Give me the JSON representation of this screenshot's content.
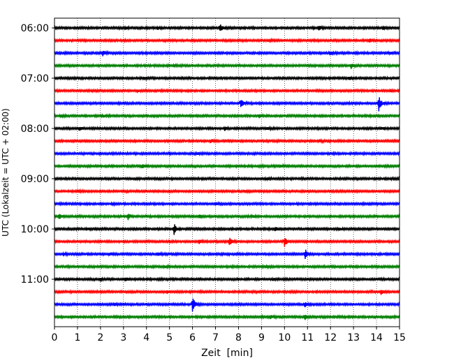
{
  "chart_data": {
    "type": "line",
    "title": "",
    "xlabel": "Zeit  [min]",
    "ylabel": "UTC (Lokalzeit = UTC + 02:00)",
    "xlim": [
      0,
      15
    ],
    "x_ticks": [
      "0",
      "1",
      "2",
      "3",
      "4",
      "5",
      "6",
      "7",
      "8",
      "9",
      "10",
      "11",
      "12",
      "13",
      "14",
      "15"
    ],
    "y_tick_labels": [
      "06:00",
      "07:00",
      "08:00",
      "09:00",
      "10:00",
      "11:00"
    ],
    "grid": "vertical dotted",
    "colors": {
      "black": "#000000",
      "red": "#ff0000",
      "blue": "#0000ff",
      "green": "#008000"
    },
    "series": [
      {
        "start": "06:00",
        "color": "black",
        "events": [
          [
            4.5,
            0.4
          ],
          [
            7.2,
            1.0
          ],
          [
            11.5,
            0.6
          ],
          [
            3.1,
            0.3
          ],
          [
            14.3,
            0.3
          ]
        ]
      },
      {
        "start": "06:15",
        "color": "red",
        "events": [
          [
            13.7,
            0.4
          ],
          [
            9.3,
            0.2
          ]
        ]
      },
      {
        "start": "06:30",
        "color": "blue",
        "events": [
          [
            2.1,
            0.6
          ],
          [
            12.0,
            0.5
          ],
          [
            14.6,
            0.3
          ]
        ]
      },
      {
        "start": "06:45",
        "color": "green",
        "events": [
          [
            12.9,
            0.7
          ],
          [
            5.2,
            0.3
          ]
        ]
      },
      {
        "start": "07:00",
        "color": "black",
        "events": [
          [
            3.9,
            0.3
          ],
          [
            12.8,
            0.3
          ]
        ]
      },
      {
        "start": "07:15",
        "color": "red",
        "events": [
          [
            3.6,
            0.4
          ],
          [
            14.6,
            0.3
          ]
        ]
      },
      {
        "start": "07:30",
        "color": "blue",
        "events": [
          [
            8.1,
            1.5
          ],
          [
            14.1,
            2.2
          ]
        ]
      },
      {
        "start": "07:45",
        "color": "green",
        "events": [
          [
            2.1,
            0.4
          ],
          [
            0.3,
            0.3
          ],
          [
            8.9,
            0.4
          ]
        ]
      },
      {
        "start": "08:00",
        "color": "black",
        "events": [
          [
            1.1,
            0.4
          ],
          [
            7.4,
            0.4
          ],
          [
            9.2,
            0.3
          ],
          [
            14.2,
            0.3
          ]
        ]
      },
      {
        "start": "08:15",
        "color": "red",
        "events": [
          [
            6.8,
            0.5
          ],
          [
            11.5,
            0.3
          ]
        ]
      },
      {
        "start": "08:30",
        "color": "blue",
        "events": [
          [
            6.2,
            0.3
          ]
        ]
      },
      {
        "start": "08:45",
        "color": "green",
        "events": [
          [
            3.8,
            0.6
          ],
          [
            9.8,
            0.3
          ]
        ]
      },
      {
        "start": "09:00",
        "color": "black",
        "events": [
          [
            9.2,
            0.3
          ],
          [
            15.0,
            0.3
          ]
        ]
      },
      {
        "start": "09:15",
        "color": "red",
        "events": [
          [
            1.0,
            0.3
          ],
          [
            8.3,
            0.3
          ]
        ]
      },
      {
        "start": "09:30",
        "color": "blue",
        "events": [
          [
            2.5,
            0.4
          ],
          [
            7.0,
            0.3
          ]
        ]
      },
      {
        "start": "09:45",
        "color": "green",
        "events": [
          [
            0.2,
            0.6
          ],
          [
            3.2,
            1.0
          ],
          [
            6.3,
            0.4
          ],
          [
            8.6,
            0.3
          ]
        ]
      },
      {
        "start": "10:00",
        "color": "black",
        "events": [
          [
            5.2,
            1.6
          ],
          [
            9.6,
            0.6
          ],
          [
            1.4,
            0.3
          ],
          [
            12.4,
            0.3
          ]
        ]
      },
      {
        "start": "10:15",
        "color": "red",
        "events": [
          [
            6.3,
            0.5
          ],
          [
            7.6,
            1.3
          ],
          [
            10.0,
            1.4
          ]
        ]
      },
      {
        "start": "10:30",
        "color": "blue",
        "events": [
          [
            4.5,
            0.5
          ],
          [
            10.9,
            1.3
          ],
          [
            2.4,
            0.4
          ],
          [
            0.4,
            0.3
          ]
        ]
      },
      {
        "start": "10:45",
        "color": "green",
        "events": [
          [
            4.8,
            0.3
          ],
          [
            9.2,
            0.3
          ]
        ]
      },
      {
        "start": "11:00",
        "color": "black",
        "events": [
          [
            2.0,
            0.4
          ],
          [
            3.1,
            0.4
          ],
          [
            9.5,
            0.3
          ]
        ]
      },
      {
        "start": "11:15",
        "color": "red",
        "events": [
          [
            14.2,
            0.6
          ],
          [
            4.9,
            0.3
          ]
        ]
      },
      {
        "start": "11:30",
        "color": "blue",
        "events": [
          [
            6.0,
            2.6
          ],
          [
            2.6,
            0.3
          ],
          [
            10.9,
            0.5
          ]
        ]
      },
      {
        "start": "11:45",
        "color": "green",
        "events": [
          [
            9.4,
            0.4
          ],
          [
            10.9,
            0.6
          ]
        ]
      }
    ]
  }
}
